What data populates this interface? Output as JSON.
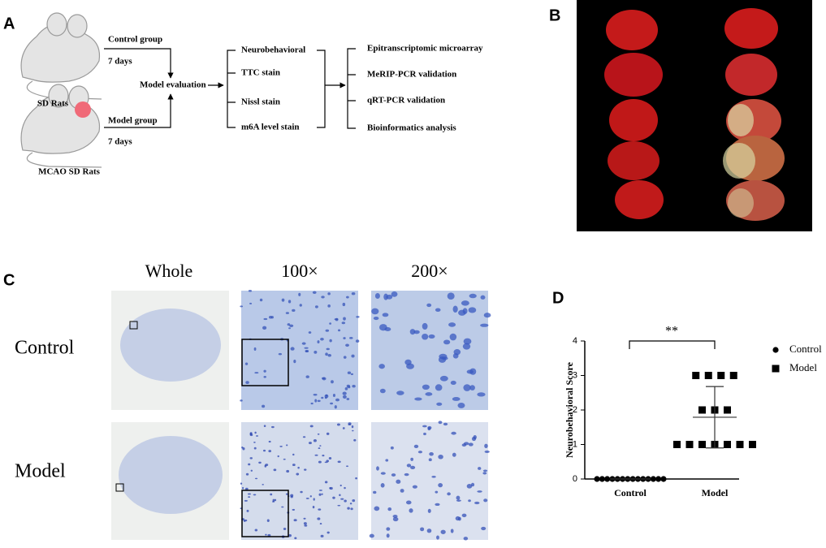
{
  "panel_labels": [
    "A",
    "B",
    "C",
    "D"
  ],
  "flowchart": {
    "control": {
      "group": "Control group",
      "days": "7    days",
      "rats": "SD Rats"
    },
    "model": {
      "group": "Model group",
      "days": "7    days",
      "rats": "MCAO SD Rats"
    },
    "evaluation": "Model evaluation",
    "methods": [
      "Neurobehavioral",
      "TTC stain",
      "Nissl stain",
      "m6A level stain"
    ],
    "analyses": [
      "Epitranscriptomic microarray",
      "MeRIP-PCR validation",
      "qRT-PCR validation",
      "Bioinformatics analysis"
    ]
  },
  "histology": {
    "columns": [
      "Whole",
      "100×",
      "200×"
    ],
    "rows": [
      "Control",
      "Model"
    ]
  },
  "chart_data": {
    "type": "scatter",
    "ylabel": "Neurobehavioral Score",
    "categories": [
      "Control",
      "Model"
    ],
    "series": [
      {
        "name": "Control",
        "marker": "circle",
        "color": "#000000",
        "values": [
          0,
          0,
          0,
          0,
          0,
          0,
          0,
          0,
          0,
          0,
          0,
          0,
          0,
          0
        ],
        "mean": 0,
        "sd": 0
      },
      {
        "name": "Model",
        "marker": "square",
        "color": "#000000",
        "values": [
          3,
          3,
          3,
          3,
          2,
          2,
          2,
          1,
          1,
          1,
          1,
          1,
          1,
          1
        ],
        "mean": 1.79,
        "sd": 0.89
      }
    ],
    "annotation": "**",
    "ylim": [
      0,
      4
    ],
    "yticks": [
      0,
      1,
      2,
      3,
      4
    ],
    "legend": "right"
  }
}
